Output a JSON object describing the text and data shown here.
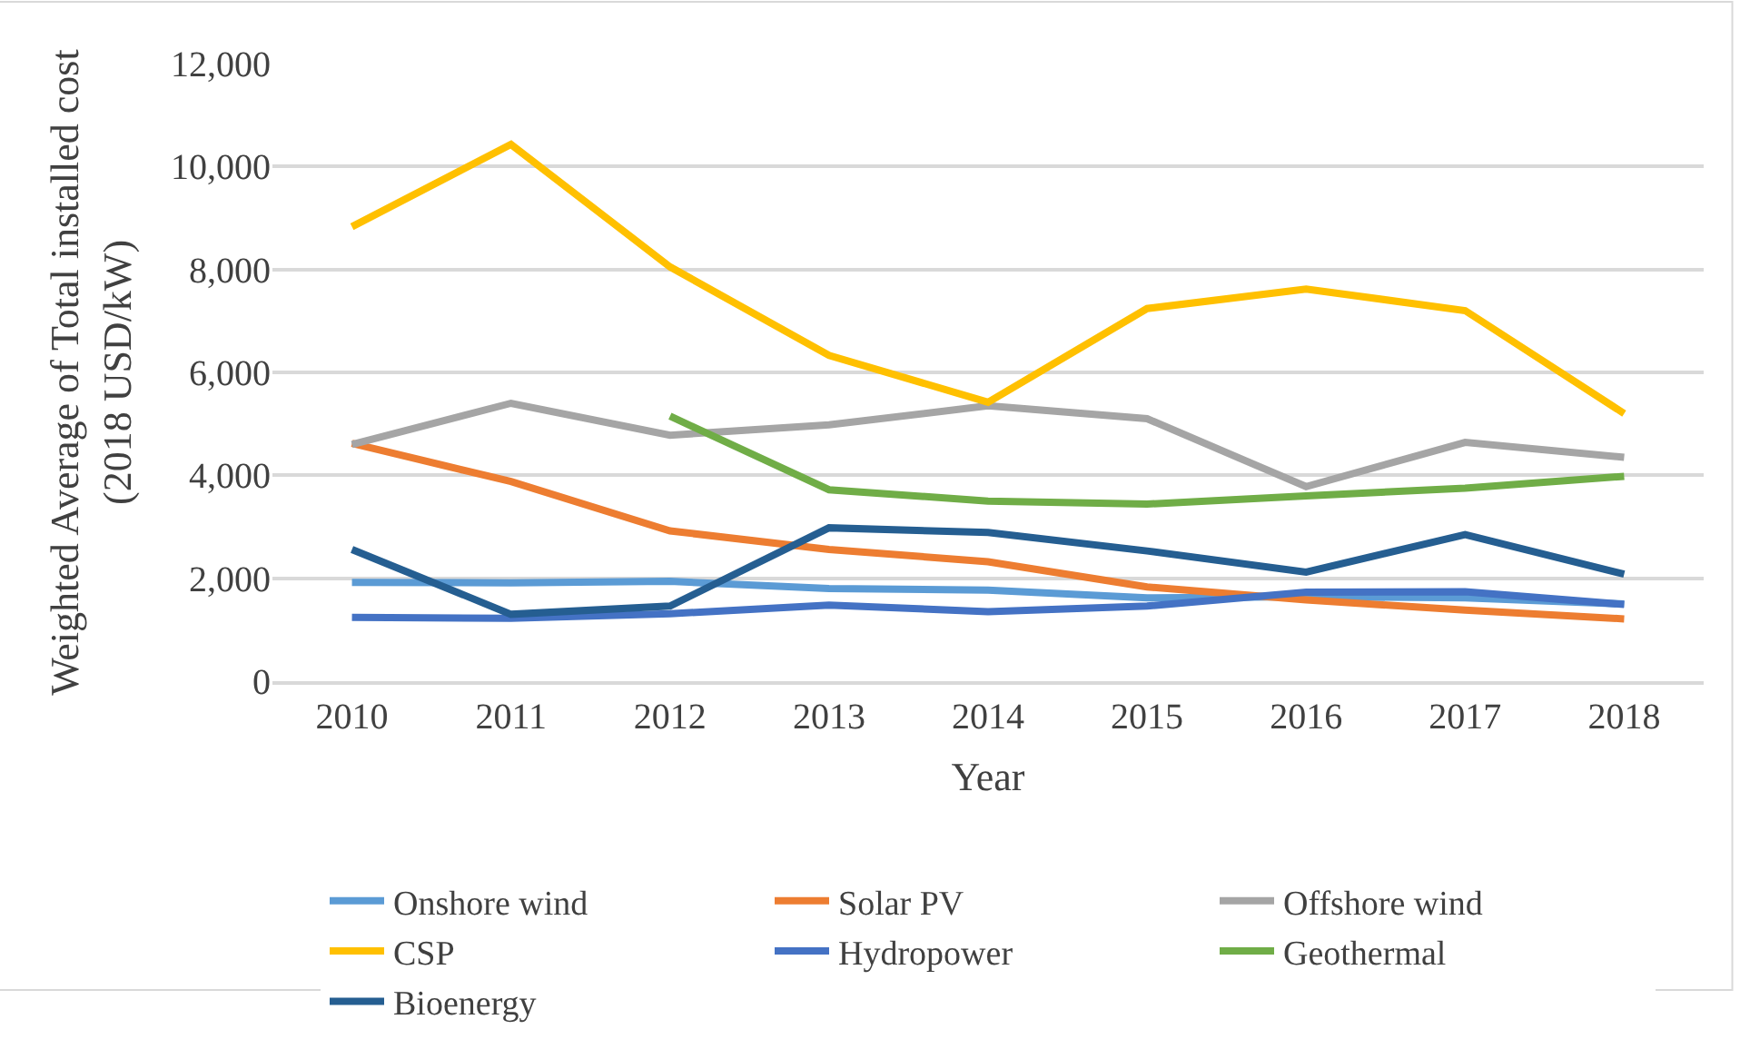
{
  "chart_data": {
    "type": "line",
    "xlabel": "Year",
    "ylabel": "Weighted Average of Total installed cost\n(2018 USD/kW)",
    "categories": [
      "2010",
      "2011",
      "2012",
      "2013",
      "2014",
      "2015",
      "2016",
      "2017",
      "2018"
    ],
    "ylim": [
      0,
      12000
    ],
    "yticks": [
      {
        "value": 0,
        "label": "0"
      },
      {
        "value": 2000,
        "label": "2,000"
      },
      {
        "value": 4000,
        "label": "4,000"
      },
      {
        "value": 6000,
        "label": "6,000"
      },
      {
        "value": 8000,
        "label": "8,000"
      },
      {
        "value": 10000,
        "label": "10,000"
      },
      {
        "value": 12000,
        "label": "12,000"
      }
    ],
    "grid": "y",
    "legend": "bottom",
    "marker": "none",
    "line_style": "solid",
    "series": [
      {
        "name": "Onshore wind",
        "color": "#5b9bd5",
        "values": [
          1920,
          1910,
          1940,
          1800,
          1770,
          1620,
          1640,
          1620,
          1500
        ]
      },
      {
        "name": "Solar PV",
        "color": "#ed7d31",
        "values": [
          4620,
          3880,
          2920,
          2560,
          2320,
          1830,
          1580,
          1380,
          1210
        ]
      },
      {
        "name": "Offshore wind",
        "color": "#a5a5a5",
        "values": [
          4600,
          5400,
          4780,
          4980,
          5350,
          5100,
          3780,
          4640,
          4350
        ]
      },
      {
        "name": "CSP",
        "color": "#ffc000",
        "values": [
          8830,
          10430,
          8050,
          6330,
          5420,
          7240,
          7620,
          7200,
          5200
        ]
      },
      {
        "name": "Hydropower",
        "color": "#4472c4",
        "values": [
          1240,
          1220,
          1310,
          1480,
          1350,
          1460,
          1730,
          1740,
          1490
        ]
      },
      {
        "name": "Geothermal",
        "color": "#70ad47",
        "values": [
          null,
          null,
          5150,
          3720,
          3500,
          3440,
          3600,
          3750,
          3980
        ]
      },
      {
        "name": "Bioenergy",
        "color": "#255e91",
        "values": [
          2560,
          1300,
          1460,
          2980,
          2890,
          2530,
          2120,
          2850,
          2080
        ]
      }
    ]
  }
}
